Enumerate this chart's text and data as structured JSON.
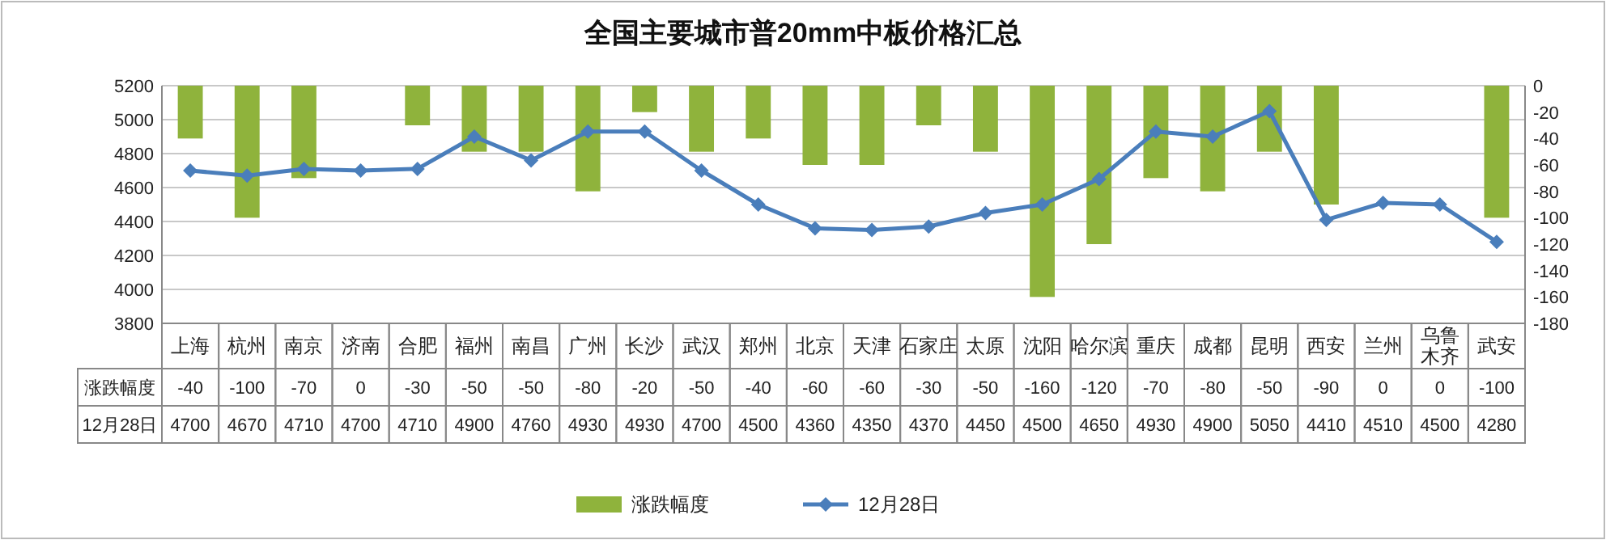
{
  "chart_data": {
    "type": "bar",
    "title": "全国主要城市普20mm中板价格汇总",
    "categories": [
      "上海",
      "杭州",
      "南京",
      "济南",
      "合肥",
      "福州",
      "南昌",
      "广州",
      "长沙",
      "武汉",
      "郑州",
      "北京",
      "天津",
      "石家庄",
      "太原",
      "沈阳",
      "哈尔滨",
      "重庆",
      "成都",
      "昆明",
      "西安",
      "兰州",
      "乌鲁木齐",
      "武安"
    ],
    "series": [
      {
        "name": "涨跌幅度",
        "axis": "y2",
        "color": "#8fb33c",
        "values": [
          -40,
          -100,
          -70,
          0,
          -30,
          -50,
          -50,
          -80,
          -20,
          -50,
          -40,
          -60,
          -60,
          -30,
          -50,
          -160,
          -120,
          -70,
          -80,
          -50,
          -90,
          0,
          0,
          -100
        ]
      },
      {
        "name": "12月28日",
        "type": "line",
        "axis": "y",
        "color": "#4a7ebb",
        "values": [
          4700,
          4670,
          4710,
          4700,
          4710,
          4900,
          4760,
          4930,
          4930,
          4700,
          4500,
          4360,
          4350,
          4370,
          4450,
          4500,
          4650,
          4930,
          4900,
          5050,
          4410,
          4510,
          4500,
          4280
        ]
      }
    ],
    "ylim": [
      3800,
      5200
    ],
    "yticks": [
      3800,
      4000,
      4200,
      4400,
      4600,
      4800,
      5000,
      5200
    ],
    "y2lim": [
      -180,
      0
    ],
    "y2ticks": [
      -180,
      -160,
      -140,
      -120,
      -100,
      -80,
      -60,
      -40,
      -20,
      0
    ],
    "grid": "y",
    "legend": "bottom",
    "marker": "diamond",
    "data_labels": true
  }
}
